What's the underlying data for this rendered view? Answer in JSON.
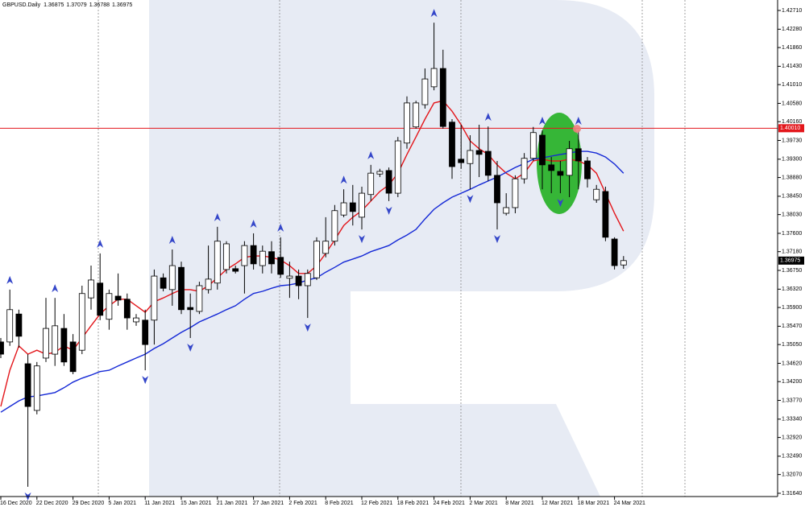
{
  "chart_data": {
    "type": "candlestick",
    "symbol": "GBPUSD.Daily",
    "categories": [
      "16 Dec 2020",
      null,
      null,
      null,
      "22 Dec 2020",
      null,
      null,
      null,
      "29 Dec 2020",
      null,
      null,
      null,
      "5 Jan 2021",
      null,
      null,
      null,
      "11 Jan 2021",
      null,
      null,
      null,
      "15 Jan 2021",
      null,
      null,
      null,
      "21 Jan 2021",
      null,
      null,
      null,
      "27 Jan 2021",
      null,
      null,
      null,
      "2 Feb 2021",
      null,
      null,
      null,
      "8 Feb 2021",
      null,
      null,
      null,
      "12 Feb 2021",
      null,
      null,
      null,
      "18 Feb 2021",
      null,
      null,
      null,
      "24 Feb 2021",
      null,
      null,
      null,
      "2 Mar 2021",
      null,
      null,
      null,
      "8 Mar 2021",
      null,
      null,
      null,
      "12 Mar 2021",
      null,
      null,
      null,
      "18 Mar 2021",
      null,
      null,
      null,
      "24 Mar 2021",
      null
    ],
    "open": [
      1.3511,
      1.3511,
      1.3575,
      1.3461,
      1.3354,
      1.3474,
      1.3483,
      1.3542,
      1.3511,
      1.3492,
      1.3612,
      1.3646,
      1.3563,
      1.3616,
      1.3609,
      1.3557,
      1.3561,
      1.3561,
      1.3658,
      1.3631,
      1.3682,
      1.359,
      1.3581,
      1.3631,
      1.3646,
      1.3677,
      1.3679,
      1.3686,
      1.3732,
      1.3686,
      1.3718,
      1.3705,
      1.3657,
      1.3662,
      1.364,
      1.3658,
      1.3714,
      1.3742,
      1.3802,
      1.383,
      1.3797,
      1.3849,
      1.3896,
      1.3904,
      1.3852,
      1.3967,
      1.4004,
      1.4055,
      1.4096,
      1.4138,
      1.4015,
      1.393,
      1.392,
      1.395,
      1.3948,
      1.3893,
      1.3806,
      1.3819,
      1.3885,
      1.3932,
      1.3985,
      1.3917,
      1.3902,
      1.3893,
      1.3954,
      1.3926,
      1.3837,
      1.3856,
      1.3747,
      1.36875
    ],
    "high": [
      1.352,
      1.3631,
      1.3585,
      1.3483,
      1.3465,
      1.3612,
      1.3612,
      1.3575,
      1.3529,
      1.364,
      1.3686,
      1.3714,
      1.3631,
      1.3668,
      1.3622,
      1.3575,
      1.3585,
      1.3677,
      1.3668,
      1.3723,
      1.3695,
      1.3622,
      1.3649,
      1.3732,
      1.3775,
      1.3742,
      1.3686,
      1.3742,
      1.376,
      1.3732,
      1.3742,
      1.3751,
      1.3695,
      1.3677,
      1.3677,
      1.3751,
      1.3797,
      1.3825,
      1.3861,
      1.3871,
      1.3867,
      1.3917,
      1.3908,
      1.3911,
      1.3981,
      1.4074,
      1.4064,
      1.4138,
      1.4243,
      1.4181,
      1.4022,
      1.4009,
      1.3985,
      1.4009,
      1.4005,
      1.3926,
      1.3852,
      1.3893,
      1.3944,
      1.4004,
      1.3996,
      1.3935,
      1.3926,
      1.3972,
      1.3996,
      1.3935,
      1.3871,
      1.3867,
      1.3751,
      1.37079
    ],
    "low": [
      1.3474,
      1.3502,
      1.3498,
      1.3179,
      1.3345,
      1.3465,
      1.3456,
      1.3456,
      1.3437,
      1.3483,
      1.3585,
      1.3561,
      1.3539,
      1.3594,
      1.3539,
      1.3548,
      1.3446,
      1.3505,
      1.3627,
      1.3594,
      1.3575,
      1.352,
      1.3575,
      1.3622,
      1.3631,
      1.3668,
      1.3668,
      1.3622,
      1.3677,
      1.3668,
      1.3668,
      1.3658,
      1.3612,
      1.3609,
      1.3566,
      1.3653,
      1.3705,
      1.3732,
      1.3797,
      1.3778,
      1.3769,
      1.3834,
      1.3889,
      1.3834,
      1.3843,
      1.3954,
      1.4,
      1.4046,
      1.4088,
      1.4,
      1.3885,
      1.3908,
      1.3861,
      1.3889,
      1.388,
      1.3769,
      1.3801,
      1.3806,
      1.3874,
      1.3926,
      1.3861,
      1.3852,
      1.3852,
      1.3843,
      1.3861,
      1.3865,
      1.383,
      1.3742,
      1.3677,
      1.36788
    ],
    "close": [
      1.3483,
      1.3585,
      1.3524,
      1.3363,
      1.3456,
      1.3542,
      1.3548,
      1.3465,
      1.3443,
      1.3622,
      1.3653,
      1.3572,
      1.3622,
      1.3607,
      1.3566,
      1.3566,
      1.3505,
      1.3662,
      1.3634,
      1.3686,
      1.3585,
      1.3585,
      1.364,
      1.3655,
      1.3742,
      1.3736,
      1.3673,
      1.3732,
      1.369,
      1.3719,
      1.369,
      1.3666,
      1.3662,
      1.364,
      1.3668,
      1.3742,
      1.3742,
      1.3812,
      1.383,
      1.381,
      1.3852,
      1.3898,
      1.3902,
      1.3852,
      1.3972,
      1.4059,
      1.4059,
      1.4114,
      1.4138,
      1.4005,
      1.3913,
      1.3922,
      1.395,
      1.3941,
      1.3893,
      1.383,
      1.3819,
      1.3885,
      1.3932,
      1.3991,
      1.3917,
      1.3904,
      1.3893,
      1.3954,
      1.3926,
      1.3885,
      1.3861,
      1.3751,
      1.3686,
      1.36975
    ],
    "up_color": "#ffffff",
    "down_color": "#000000",
    "moving_averages": [
      {
        "color": "#e3161b",
        "values": [
          1.3363,
          1.3446,
          1.3502,
          1.3483,
          1.3492,
          1.3483,
          1.3487,
          1.3502,
          1.3492,
          1.352,
          1.3548,
          1.3575,
          1.3594,
          1.3609,
          1.3609,
          1.3594,
          1.3579,
          1.3603,
          1.3612,
          1.3622,
          1.3631,
          1.3631,
          1.3627,
          1.364,
          1.3658,
          1.3677,
          1.369,
          1.3705,
          1.3708,
          1.3708,
          1.3705,
          1.3699,
          1.3686,
          1.3668,
          1.3668,
          1.3686,
          1.3714,
          1.3745,
          1.3778,
          1.3797,
          1.3812,
          1.3834,
          1.3856,
          1.3871,
          1.3898,
          1.3941,
          1.3981,
          1.4022,
          1.4059,
          1.4064,
          1.404,
          1.4009,
          1.3972,
          1.3954,
          1.3941,
          1.3917,
          1.3898,
          1.3885,
          1.3898,
          1.3926,
          1.393,
          1.3926,
          1.3926,
          1.393,
          1.3926,
          1.3917,
          1.3898,
          1.3852,
          1.3806,
          1.3765
        ]
      },
      {
        "color": "#1428d6",
        "values": [
          1.335,
          1.3363,
          1.3376,
          1.3385,
          1.3387,
          1.3391,
          1.3395,
          1.3406,
          1.3419,
          1.3428,
          1.3435,
          1.3443,
          1.3446,
          1.3456,
          1.3465,
          1.3474,
          1.3483,
          1.3496,
          1.3507,
          1.352,
          1.3533,
          1.3544,
          1.3557,
          1.3566,
          1.3575,
          1.3585,
          1.3594,
          1.3609,
          1.3622,
          1.3627,
          1.3634,
          1.364,
          1.3642,
          1.3646,
          1.3653,
          1.3658,
          1.3671,
          1.3682,
          1.3694,
          1.3701,
          1.3708,
          1.3718,
          1.3725,
          1.3732,
          1.3745,
          1.3756,
          1.3769,
          1.3793,
          1.3815,
          1.383,
          1.3843,
          1.3852,
          1.3861,
          1.3871,
          1.388,
          1.3889,
          1.39,
          1.3911,
          1.392,
          1.393,
          1.3933,
          1.3937,
          1.3941,
          1.3944,
          1.3948,
          1.3948,
          1.3944,
          1.3935,
          1.3919,
          1.3898
        ]
      }
    ],
    "fractal_color": "#3446c9",
    "fractals_up": [
      null,
      1.3631,
      null,
      null,
      null,
      null,
      1.3612,
      null,
      null,
      null,
      null,
      1.3714,
      null,
      null,
      null,
      null,
      null,
      null,
      null,
      1.3723,
      null,
      null,
      null,
      null,
      1.3775,
      null,
      null,
      null,
      1.376,
      null,
      null,
      1.3751,
      null,
      null,
      null,
      null,
      null,
      null,
      1.3861,
      null,
      null,
      1.3917,
      null,
      null,
      null,
      null,
      null,
      null,
      1.4243,
      null,
      null,
      null,
      null,
      null,
      1.4005,
      null,
      null,
      null,
      null,
      null,
      1.3996,
      null,
      null,
      null,
      1.3996,
      null,
      null,
      null,
      null,
      null
    ],
    "fractals_down": [
      null,
      null,
      null,
      1.3179,
      null,
      null,
      null,
      null,
      null,
      null,
      null,
      null,
      null,
      null,
      null,
      null,
      1.3446,
      null,
      null,
      null,
      null,
      1.352,
      null,
      null,
      null,
      null,
      null,
      null,
      null,
      null,
      null,
      null,
      null,
      null,
      1.3566,
      null,
      null,
      null,
      null,
      null,
      1.3769,
      null,
      null,
      1.3834,
      null,
      null,
      null,
      null,
      null,
      null,
      null,
      null,
      1.3861,
      null,
      null,
      1.3769,
      null,
      null,
      null,
      null,
      null,
      null,
      1.3852,
      null,
      null,
      null,
      null,
      null,
      null,
      null
    ],
    "hline": {
      "value": 1.4001,
      "label": "1.40010",
      "color": "#e3161b"
    },
    "ylim": [
      1.3151,
      1.4295
    ],
    "yticks": [
      {
        "value": 1.4271,
        "label": "1.42710"
      },
      {
        "value": 1.4228,
        "label": "1.42280"
      },
      {
        "value": 1.4186,
        "label": "1.41860"
      },
      {
        "value": 1.4143,
        "label": "1.41430"
      },
      {
        "value": 1.4101,
        "label": "1.41010"
      },
      {
        "value": 1.4058,
        "label": "1.40580"
      },
      {
        "value": 1.4016,
        "label": "1.40160"
      },
      {
        "value": 1.3973,
        "label": "1.39730"
      },
      {
        "value": 1.393,
        "label": "1.39300"
      },
      {
        "value": 1.3888,
        "label": "1.38880"
      },
      {
        "value": 1.3845,
        "label": "1.38450"
      },
      {
        "value": 1.3803,
        "label": "1.38030"
      },
      {
        "value": 1.376,
        "label": "1.37600"
      },
      {
        "value": 1.3718,
        "label": "1.37180"
      },
      {
        "value": 1.3675,
        "label": "1.36750"
      },
      {
        "value": 1.3632,
        "label": "1.36320"
      },
      {
        "value": 1.359,
        "label": "1.35900"
      },
      {
        "value": 1.3547,
        "label": "1.35470"
      },
      {
        "value": 1.3505,
        "label": "1.35050"
      },
      {
        "value": 1.3462,
        "label": "1.34620"
      },
      {
        "value": 1.342,
        "label": "1.34200"
      },
      {
        "value": 1.3377,
        "label": "1.33770"
      },
      {
        "value": 1.3334,
        "label": "1.33340"
      },
      {
        "value": 1.3292,
        "label": "1.32920"
      },
      {
        "value": 1.3249,
        "label": "1.32490"
      },
      {
        "value": 1.3207,
        "label": "1.32070"
      },
      {
        "value": 1.3164,
        "label": "1.31640"
      }
    ]
  }
}
